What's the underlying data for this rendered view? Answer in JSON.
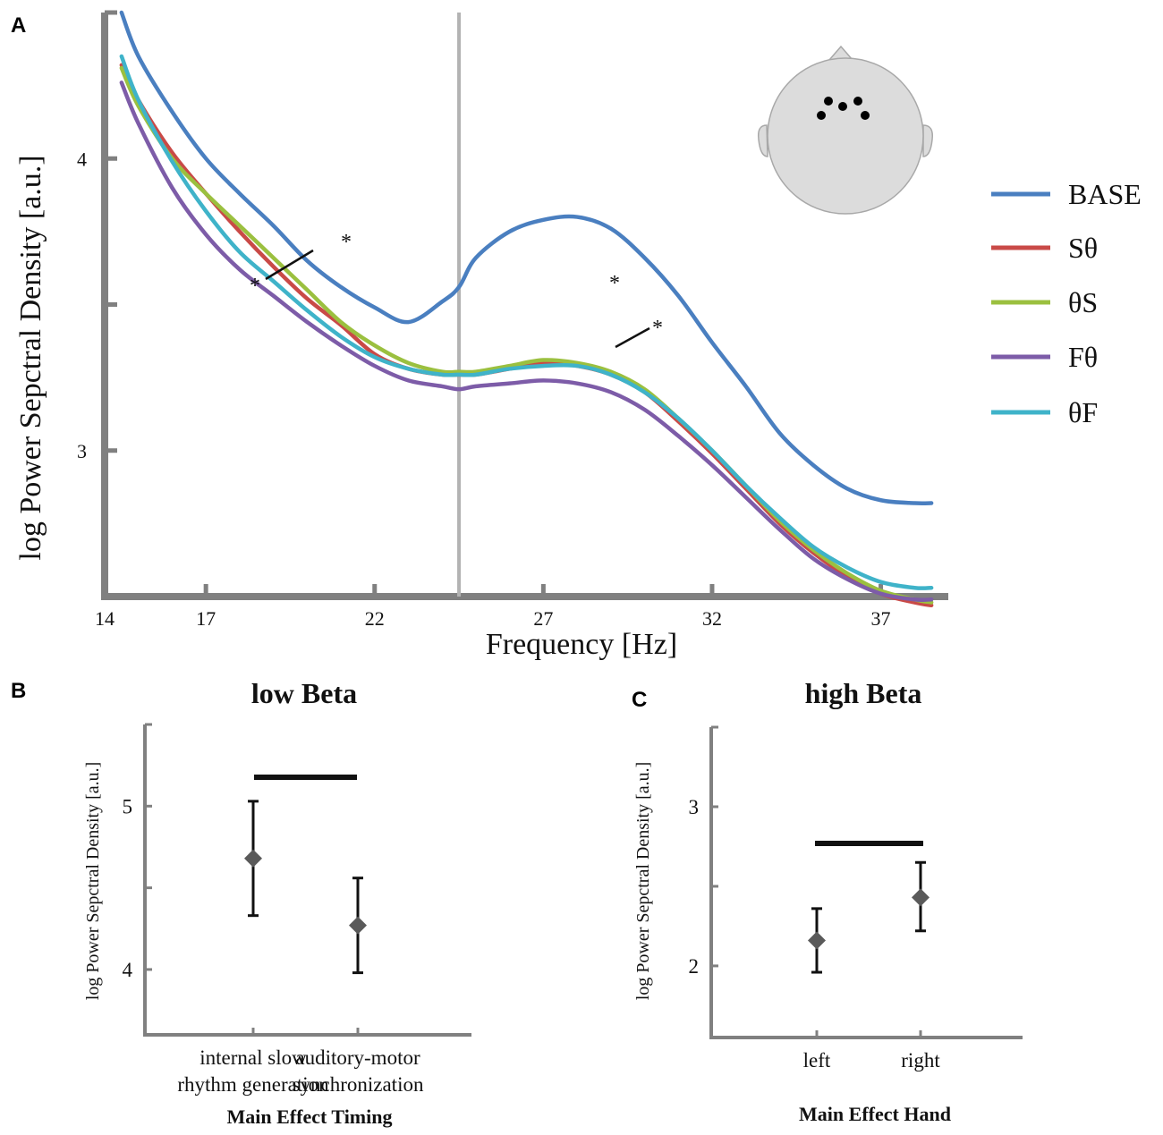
{
  "panel_labels": {
    "a": "A",
    "b": "B",
    "c": "C"
  },
  "colors": {
    "BASE": "#4a7fc0",
    "Sθ": "#c94a47",
    "θS": "#9bc03f",
    "Fθ": "#7d5ca8",
    "θF": "#3fb3c9",
    "axis": "#808080",
    "vline": "#b3b3b3",
    "marker": "#5a5a5a"
  },
  "head_icon": "head-topography-icon",
  "annotations": {
    "star": "*"
  },
  "chart_data": [
    {
      "id": "A",
      "type": "line",
      "xlabel": "Frequency [Hz]",
      "ylabel": "log Power Sepctral Density [a.u.]",
      "xlim": [
        14,
        39
      ],
      "ylim": [
        2.5,
        4.5
      ],
      "x_ticks": [
        14,
        17,
        22,
        27,
        32,
        37
      ],
      "y_ticks": [
        3,
        4
      ],
      "vertical_line_x": 24.5,
      "x": [
        14.5,
        15,
        16,
        17,
        18,
        19,
        20,
        21,
        22,
        23,
        24,
        24.5,
        25,
        26,
        27,
        28,
        29,
        30,
        31,
        32,
        33,
        34,
        35,
        36,
        37,
        38,
        38.5
      ],
      "series": [
        {
          "name": "BASE",
          "values": [
            4.5,
            4.35,
            4.16,
            4.0,
            3.88,
            3.77,
            3.65,
            3.56,
            3.49,
            3.44,
            3.51,
            3.56,
            3.66,
            3.75,
            3.79,
            3.8,
            3.76,
            3.66,
            3.53,
            3.37,
            3.22,
            3.06,
            2.95,
            2.87,
            2.83,
            2.82,
            2.82
          ]
        },
        {
          "name": "Sθ",
          "values": [
            4.32,
            4.2,
            4.02,
            3.88,
            3.75,
            3.63,
            3.52,
            3.43,
            3.33,
            3.28,
            3.26,
            3.26,
            3.26,
            3.28,
            3.3,
            3.29,
            3.26,
            3.2,
            3.1,
            2.99,
            2.87,
            2.75,
            2.65,
            2.57,
            2.51,
            2.48,
            2.47
          ]
        },
        {
          "name": "θS",
          "values": [
            4.31,
            4.18,
            4.0,
            3.88,
            3.77,
            3.66,
            3.55,
            3.44,
            3.36,
            3.3,
            3.27,
            3.27,
            3.27,
            3.29,
            3.31,
            3.3,
            3.27,
            3.21,
            3.11,
            3.0,
            2.88,
            2.76,
            2.66,
            2.58,
            2.52,
            2.49,
            2.48
          ]
        },
        {
          "name": "Fθ",
          "values": [
            4.26,
            4.12,
            3.9,
            3.74,
            3.62,
            3.53,
            3.44,
            3.36,
            3.29,
            3.24,
            3.22,
            3.21,
            3.22,
            3.23,
            3.24,
            3.23,
            3.2,
            3.14,
            3.05,
            2.95,
            2.84,
            2.73,
            2.63,
            2.56,
            2.51,
            2.49,
            2.49
          ]
        },
        {
          "name": "θF",
          "values": [
            4.35,
            4.2,
            3.99,
            3.82,
            3.68,
            3.58,
            3.48,
            3.39,
            3.32,
            3.28,
            3.26,
            3.26,
            3.26,
            3.28,
            3.29,
            3.29,
            3.26,
            3.2,
            3.11,
            3.0,
            2.88,
            2.77,
            2.67,
            2.6,
            2.55,
            2.53,
            2.53
          ]
        }
      ]
    },
    {
      "id": "B",
      "type": "scatter",
      "title": "low Beta",
      "xlabel": "Main Effect Timing",
      "ylabel": "log Power Sepctral Density [a.u.]",
      "ylim": [
        3.6,
        5.5
      ],
      "y_ticks": [
        4,
        5
      ],
      "categories": [
        {
          "line1": "internal slow",
          "line2": "rhythm generation"
        },
        {
          "line1": "auditory-motor",
          "line2": "synchronization"
        }
      ],
      "values": [
        4.68,
        4.27
      ],
      "error_low": [
        4.33,
        3.98
      ],
      "error_high": [
        5.03,
        4.56
      ],
      "significance_bar": true
    },
    {
      "id": "C",
      "type": "scatter",
      "title": "high Beta",
      "xlabel": "Main Effect Hand",
      "ylabel": "log Power Sepctral Density [a.u.]",
      "ylim": [
        1.55,
        3.5
      ],
      "y_ticks": [
        2,
        3
      ],
      "categories": [
        {
          "line1": "left",
          "line2": ""
        },
        {
          "line1": "right",
          "line2": ""
        }
      ],
      "values": [
        2.16,
        2.43
      ],
      "error_low": [
        1.96,
        2.22
      ],
      "error_high": [
        2.36,
        2.65
      ],
      "significance_bar": true
    }
  ]
}
